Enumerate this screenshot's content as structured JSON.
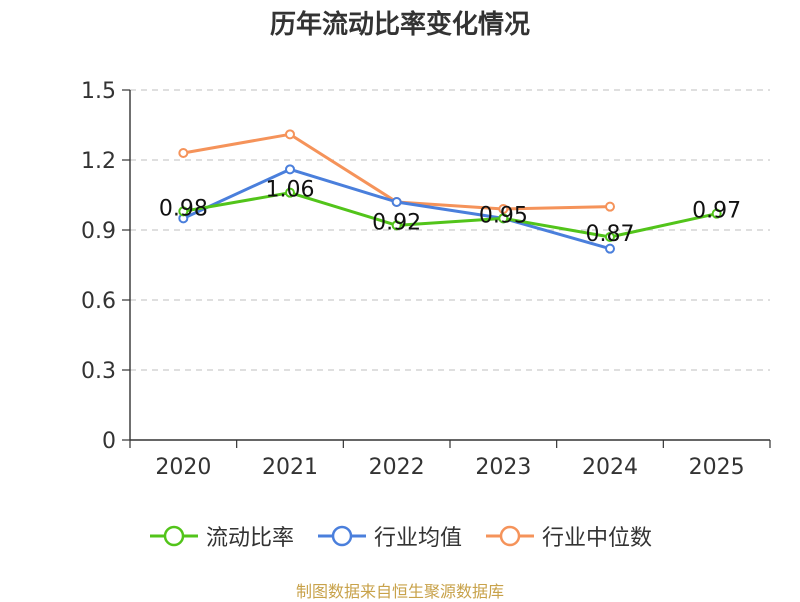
{
  "chart_data": {
    "type": "line",
    "title": "历年流动比率变化情况",
    "categories": [
      "2020",
      "2021",
      "2022",
      "2023",
      "2024",
      "2025"
    ],
    "ylim": [
      0,
      1.5
    ],
    "yticks": [
      0,
      0.3,
      0.6,
      0.9,
      1.2,
      1.5
    ],
    "ytick_labels": [
      "0",
      "0.3",
      "0.6",
      "0.9",
      "1.2",
      "1.5"
    ],
    "grid": true,
    "legend_position": "bottom",
    "series": [
      {
        "name": "流动比率",
        "color": "#52c41a",
        "values": [
          0.98,
          1.06,
          0.92,
          0.95,
          0.87,
          0.97
        ],
        "labels": [
          "0.98",
          "1.06",
          "0.92",
          "0.95",
          "0.87",
          "0.97"
        ]
      },
      {
        "name": "行业均值",
        "color": "#4a7fdc",
        "values": [
          0.95,
          1.16,
          1.02,
          0.95,
          0.82,
          null
        ]
      },
      {
        "name": "行业中位数",
        "color": "#f5935a",
        "values": [
          1.23,
          1.31,
          1.02,
          0.99,
          1.0,
          null
        ]
      }
    ]
  },
  "source": "制图数据来自恒生聚源数据库"
}
